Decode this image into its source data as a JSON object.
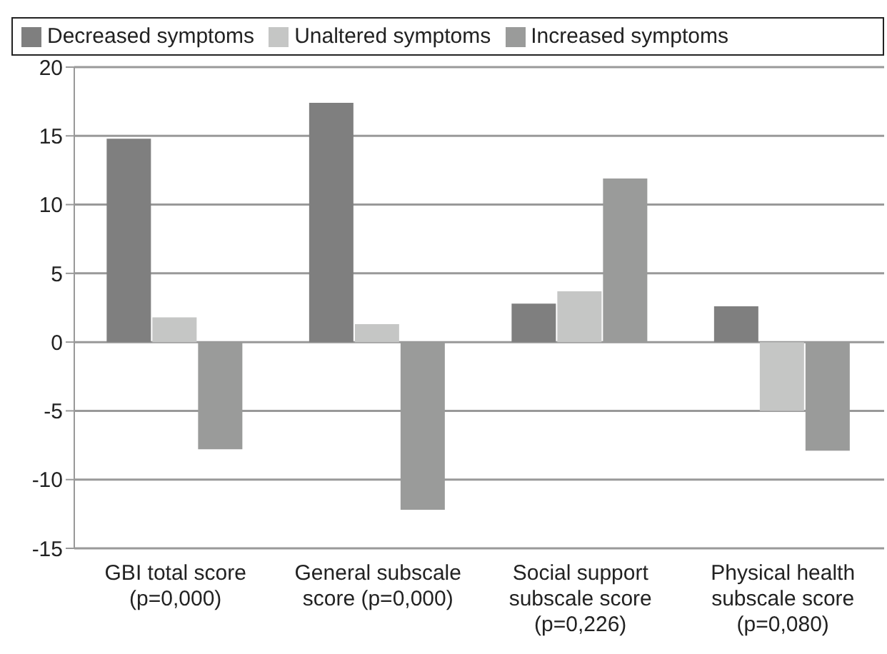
{
  "chart_data": {
    "type": "bar",
    "categories": [
      "GBI total score (p=0,000)",
      "General subscale score (p=0,000)",
      "Social support subscale score (p=0,226)",
      "Physical health subscale score (p=0,080)"
    ],
    "series": [
      {
        "name": "Decreased symptoms",
        "color": "#7f7f7f",
        "values": [
          14.8,
          17.4,
          2.8,
          2.6
        ]
      },
      {
        "name": "Unaltered symptoms",
        "color": "#c5c6c5",
        "values": [
          1.8,
          1.3,
          3.7,
          -5.0
        ]
      },
      {
        "name": "Increased symptoms",
        "color": "#9a9b9a",
        "values": [
          -7.8,
          -12.2,
          11.9,
          -7.9
        ]
      }
    ],
    "ylim": [
      -15,
      20
    ],
    "yticks": [
      -15,
      -10,
      -5,
      0,
      5,
      10,
      15,
      20
    ],
    "grid": "y",
    "legend": "top"
  }
}
